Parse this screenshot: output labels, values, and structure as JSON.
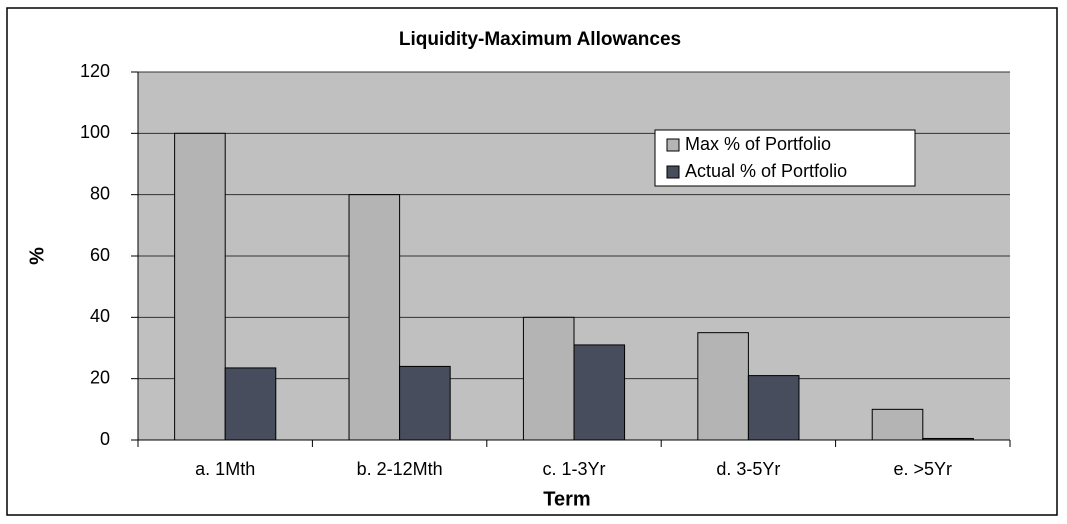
{
  "chart_data": {
    "type": "bar",
    "title": "Liquidity-Maximum Allowances",
    "x_label": "Term",
    "y_label": "%",
    "categories": [
      "a. 1Mth",
      "b. 2-12Mth",
      "c. 1-3Yr",
      "d. 3-5Yr",
      "e. >5Yr"
    ],
    "series": [
      {
        "name": "Max % of Portfolio",
        "color": "#b4b4b4",
        "values": [
          100,
          80,
          40,
          35,
          10
        ]
      },
      {
        "name": "Actual % of Portfolio",
        "color": "#474d5c",
        "values": [
          23.5,
          24,
          31,
          21,
          0.5
        ]
      }
    ],
    "ylim": [
      0,
      120
    ],
    "yticks": [
      0,
      20,
      40,
      60,
      80,
      100,
      120
    ],
    "grid": true,
    "legend": "upper right",
    "plot_background": "#c0c0c0"
  }
}
